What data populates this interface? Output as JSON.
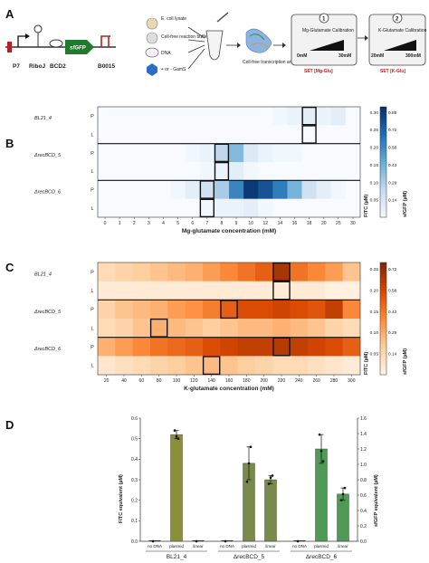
{
  "panel_labels": [
    "A",
    "B",
    "C",
    "D"
  ],
  "panel_a": {
    "construct_labels": [
      "P7",
      "RiboJ",
      "BCD2",
      "B0015"
    ],
    "gene_label": "sfGFP",
    "reaction_components": [
      "E. coli lysate",
      "Cell-free reaction buffer",
      "DNA",
      "+ or - GamS"
    ],
    "output_label": "Cell-free transcription and translation",
    "step1": {
      "number": "1",
      "title": "Mg-Glutamate Calibration",
      "min": "0mM",
      "max": "30mM",
      "set": "SET [Mg-Glu]"
    },
    "step2": {
      "number": "2",
      "title": "K-Glutamate Calibration",
      "min": "20mM",
      "max": "300mM",
      "set": "SET [K-Glu]"
    }
  },
  "colors": {
    "blue_low": "#f7fbff",
    "blue_high": "#08306b",
    "orange_low": "#fff5eb",
    "orange_high": "#7f2704",
    "bar_bl21": "#8a8f3a",
    "bar_recbcd5": "#7a8a4a",
    "bar_recbcd6": "#4f9a55"
  },
  "chart_data": [
    {
      "type": "heatmap",
      "panel": "B",
      "xlabel": "Mg-glutamate concentration (mM)",
      "x": [
        "0",
        "1",
        "2",
        "3",
        "4",
        "5",
        "6",
        "7",
        "8",
        "9",
        "10",
        "12",
        "14",
        "16",
        "18",
        "20",
        "25",
        "30"
      ],
      "groups": [
        "BL21_4",
        "ΔrecBCD_5",
        "ΔrecBCD_6"
      ],
      "row_labels": [
        "P",
        "L"
      ],
      "colorbar_left_label": "FITC (µM)",
      "colorbar_right_label": "sfGFP (µM)",
      "colorbar_left_ticks": [
        "0.30",
        "0.25",
        "0.20",
        "0.15",
        "0.10",
        "0.05"
      ],
      "colorbar_right_ticks": [
        "0.86",
        "0.72",
        "0.58",
        "0.43",
        "0.29",
        "0.14"
      ],
      "vmax": 0.3,
      "rows": [
        [
          0,
          0,
          0,
          0,
          0,
          0,
          0,
          0,
          0,
          0,
          0,
          0,
          0.01,
          0.02,
          0.03,
          0.02,
          0.03,
          0
        ],
        [
          0,
          0,
          0,
          0,
          0,
          0,
          0,
          0,
          0,
          0,
          0,
          0,
          0,
          0,
          0,
          0,
          0,
          0
        ],
        [
          0,
          0,
          0,
          0,
          0,
          0,
          0.01,
          0.02,
          0.08,
          0.13,
          0.04,
          0.02,
          0.01,
          0.01,
          0,
          0,
          0,
          0
        ],
        [
          0,
          0,
          0,
          0,
          0,
          0,
          0,
          0.01,
          0.02,
          0.03,
          0.01,
          0,
          0,
          0,
          0,
          0,
          0,
          0
        ],
        [
          0,
          0,
          0,
          0,
          0,
          0.01,
          0.03,
          0.06,
          0.1,
          0.2,
          0.29,
          0.26,
          0.21,
          0.14,
          0.06,
          0.03,
          0.01,
          0
        ],
        [
          0,
          0,
          0,
          0,
          0,
          0,
          0,
          0.01,
          0.02,
          0.02,
          0.03,
          0.01,
          0,
          0,
          0,
          0,
          0,
          0
        ]
      ],
      "highlight": [
        [
          0,
          14
        ],
        [
          1,
          14
        ],
        [
          2,
          8
        ],
        [
          3,
          8
        ],
        [
          4,
          7
        ],
        [
          5,
          7
        ]
      ]
    },
    {
      "type": "heatmap",
      "panel": "C",
      "xlabel": "K-glutamate concentration (mM)",
      "x": [
        "20",
        "40",
        "60",
        "80",
        "100",
        "120",
        "140",
        "160",
        "180",
        "200",
        "220",
        "240",
        "260",
        "280",
        "300"
      ],
      "groups": [
        "BL21_4",
        "ΔrecBCD_5",
        "ΔrecBCD_6"
      ],
      "row_labels": [
        "P",
        "L"
      ],
      "colorbar_left_label": "FITC (µM)",
      "colorbar_right_label": "sfGFP (µM)",
      "colorbar_left_ticks": [
        "0.25",
        "0.20",
        "0.15",
        "0.10",
        "0.05"
      ],
      "colorbar_right_ticks": [
        "0.72",
        "0.58",
        "0.43",
        "0.29",
        "0.14"
      ],
      "vmax": 0.27,
      "rows": [
        [
          0.05,
          0.06,
          0.07,
          0.08,
          0.09,
          0.1,
          0.12,
          0.14,
          0.16,
          0.18,
          0.24,
          0.16,
          0.14,
          0.12,
          0.08
        ],
        [
          0.02,
          0.02,
          0.02,
          0.02,
          0.02,
          0.02,
          0.02,
          0.02,
          0.02,
          0.02,
          0.02,
          0.02,
          0.02,
          0.01,
          0.01
        ],
        [
          0.06,
          0.08,
          0.09,
          0.1,
          0.12,
          0.13,
          0.15,
          0.18,
          0.2,
          0.2,
          0.21,
          0.2,
          0.19,
          0.22,
          0.14
        ],
        [
          0.05,
          0.06,
          0.08,
          0.1,
          0.09,
          0.08,
          0.07,
          0.08,
          0.09,
          0.09,
          0.1,
          0.09,
          0.08,
          0.06,
          0.05
        ],
        [
          0.1,
          0.12,
          0.14,
          0.16,
          0.17,
          0.18,
          0.2,
          0.21,
          0.22,
          0.22,
          0.23,
          0.22,
          0.21,
          0.2,
          0.18
        ],
        [
          0.03,
          0.04,
          0.05,
          0.06,
          0.07,
          0.08,
          0.09,
          0.08,
          0.07,
          0.06,
          0.05,
          0.05,
          0.04,
          0.03,
          0.02
        ]
      ],
      "highlight": [
        [
          0,
          10
        ],
        [
          1,
          10
        ],
        [
          2,
          7
        ],
        [
          3,
          3
        ],
        [
          4,
          10
        ],
        [
          5,
          6
        ]
      ]
    },
    {
      "type": "bar",
      "panel": "D",
      "ylabel_left": "FITC equivalent (µM)",
      "ylabel_right": "sfGFP equivalent (µM)",
      "yticks_left": [
        "0.0",
        "0.1",
        "0.2",
        "0.3",
        "0.4",
        "0.5",
        "0.6"
      ],
      "yticks_right": [
        "0.0",
        "0.2",
        "0.4",
        "0.6",
        "0.8",
        "1.0",
        "1.2",
        "1.4",
        "1.6"
      ],
      "ylim": [
        0,
        0.6
      ],
      "groups": [
        "BL21_4",
        "ΔrecBCD_5",
        "ΔrecBCD_6"
      ],
      "categories": [
        "no DNA",
        "plasmid",
        "linear"
      ],
      "values": [
        [
          0,
          0.52,
          0
        ],
        [
          0,
          0.38,
          0.3
        ],
        [
          0,
          0.45,
          0.23
        ]
      ],
      "errors": [
        [
          0,
          0.02,
          0
        ],
        [
          0,
          0.08,
          0.02
        ],
        [
          0,
          0.07,
          0.03
        ]
      ],
      "points": [
        [
          [
            0
          ],
          [
            0.54,
            0.51,
            0.5
          ],
          [
            0
          ]
        ],
        [
          [
            0
          ],
          [
            0.29,
            0.38,
            0.46
          ],
          [
            0.28,
            0.31,
            0.32
          ]
        ],
        [
          [
            0
          ],
          [
            0.52,
            0.44,
            0.39
          ],
          [
            0.2,
            0.23,
            0.26
          ]
        ]
      ]
    }
  ]
}
